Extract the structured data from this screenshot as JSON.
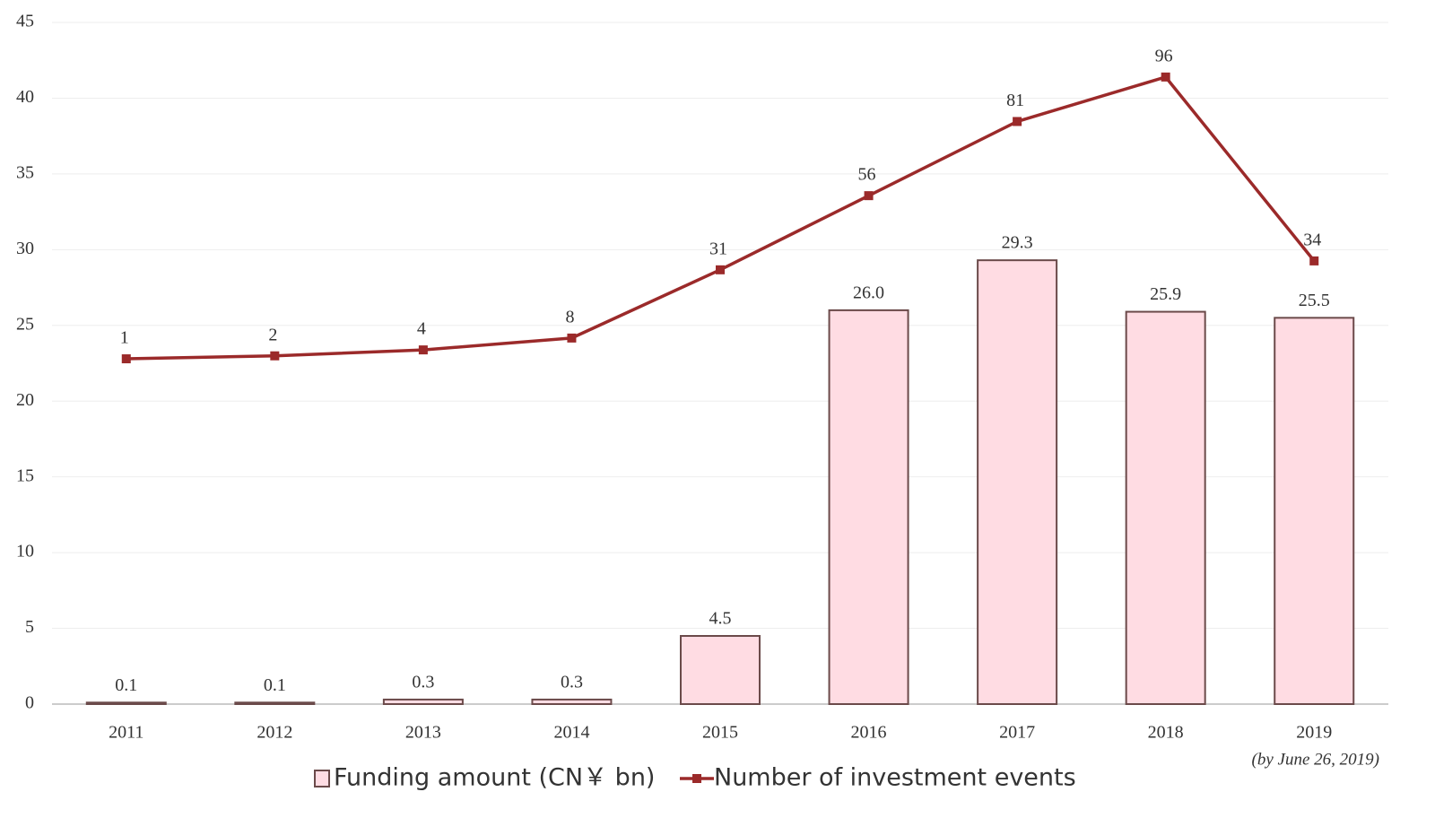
{
  "chart_data": {
    "type": "bar",
    "categories": [
      "2011",
      "2012",
      "2013",
      "2014",
      "2015",
      "2016",
      "2017",
      "2018",
      "2019"
    ],
    "series": [
      {
        "name": "Funding amount (CN￥ bn)",
        "type": "bar",
        "color": "#ffdce3",
        "edge_color": "#6b4a4a",
        "values": [
          0.1,
          0.1,
          0.3,
          0.3,
          4.5,
          26.0,
          29.3,
          25.9,
          25.5
        ],
        "value_labels": [
          "0.1",
          "0.1",
          "0.3",
          "0.3",
          "4.5",
          "26.0",
          "29.3",
          "25.9",
          "25.5"
        ]
      },
      {
        "name": "Number of investment events",
        "type": "line",
        "axis": "y2",
        "color": "#9b2a2a",
        "values": [
          1,
          2,
          4,
          8,
          31,
          56,
          81,
          96,
          34
        ]
      }
    ],
    "annotation": "(by June 26, 2019)",
    "ylim": [
      0,
      45
    ],
    "yticks": [
      0,
      5,
      10,
      15,
      20,
      25,
      30,
      35,
      40,
      45
    ],
    "y2lim": [
      -115.4,
      114.4
    ],
    "grid": true,
    "legend": "bottom"
  }
}
